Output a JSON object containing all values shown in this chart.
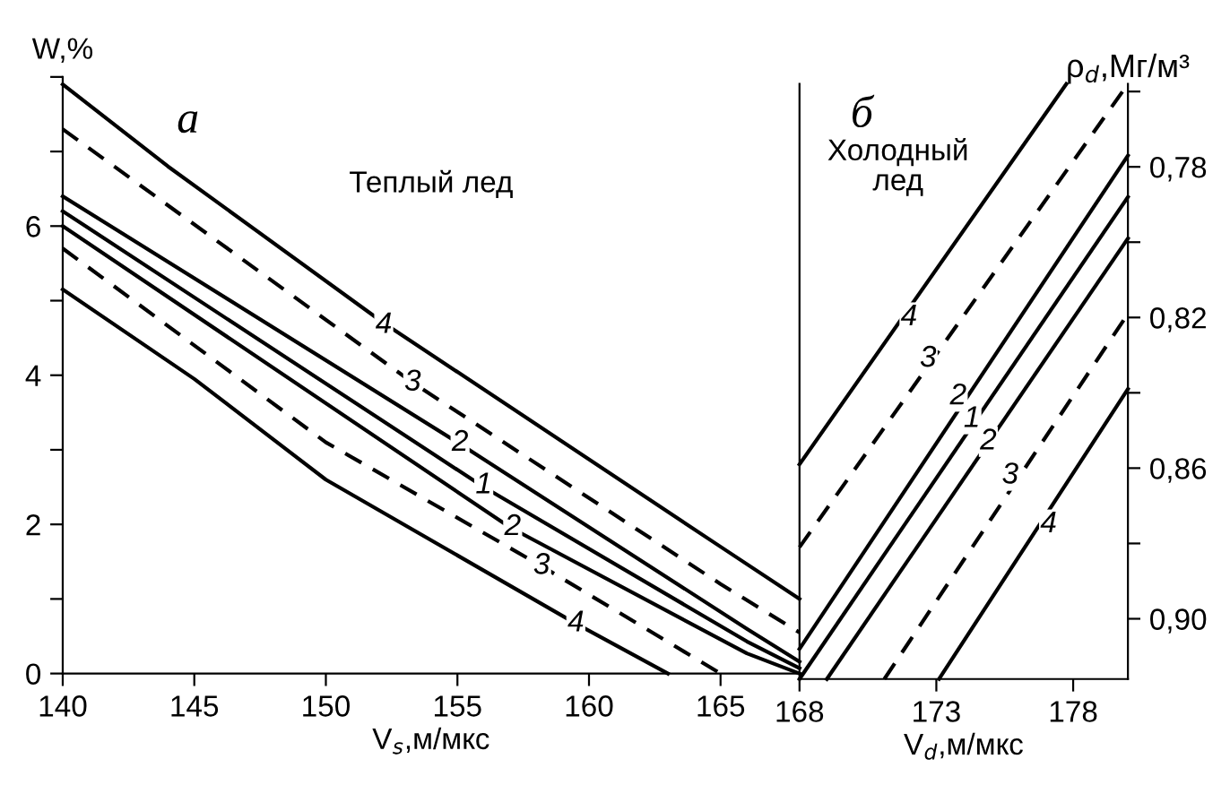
{
  "chart_data": [
    {
      "type": "line",
      "xlabel": "V$_{s}$,м/мкс",
      "ylabel": "W,%",
      "xlim": [
        140,
        168
      ],
      "ylim": [
        0,
        8
      ],
      "xticks": [
        140,
        145,
        150,
        155,
        160,
        165
      ],
      "yticks": [
        0,
        {
          "value": 1,
          "label": null
        },
        2,
        {
          "value": 3,
          "label": null
        },
        4,
        {
          "value": 5,
          "label": null
        },
        6,
        {
          "value": 7,
          "label": null
        },
        {
          "value": 8,
          "label": null
        }
      ],
      "series": [
        {
          "color": "#000000",
          "line_style": "solid",
          "x": [
            140,
            144,
            152.2,
            165,
            168
          ],
          "values": [
            7.9,
            6.8,
            4.7,
            1.7,
            1.0
          ]
        },
        {
          "color": "#000000",
          "line_style": "dashed",
          "x": [
            140,
            153.3,
            165,
            168
          ],
          "values": [
            7.3,
            3.9,
            1.2,
            0.55
          ]
        },
        {
          "color": "#000000",
          "line_style": "solid",
          "x": [
            140,
            155,
            166,
            168
          ],
          "values": [
            6.4,
            3.1,
            0.6,
            0.16
          ]
        },
        {
          "color": "#000000",
          "line_style": "solid",
          "x": [
            140,
            156,
            166,
            168
          ],
          "values": [
            6.2,
            2.5,
            0.43,
            0.07
          ]
        },
        {
          "color": "#000000",
          "line_style": "solid",
          "x": [
            140,
            157,
            166,
            168
          ],
          "values": [
            6.0,
            1.96,
            0.27,
            0
          ]
        },
        {
          "color": "#000000",
          "line_style": "dashed",
          "x": [
            140,
            150,
            158.2,
            165
          ],
          "values": [
            5.7,
            3.1,
            1.44,
            0
          ]
        },
        {
          "color": "#000000",
          "line_style": "solid",
          "x": [
            140,
            145,
            150,
            159.5,
            163
          ],
          "values": [
            5.15,
            3.95,
            2.6,
            0.67,
            0
          ]
        }
      ],
      "annotations": [
        "а",
        "Теплый лед",
        {
          "text": "4",
          "x": 152.2,
          "y": 4.67
        },
        {
          "text": "3",
          "x": 153.3,
          "y": 3.9
        },
        {
          "text": "2",
          "x": 155.1,
          "y": 3.09
        },
        {
          "text": "1",
          "x": 156.0,
          "y": 2.52
        },
        {
          "text": "2",
          "x": 157.1,
          "y": 1.96
        },
        {
          "text": "3",
          "x": 158.2,
          "y": 1.44
        },
        {
          "text": "4",
          "x": 159.5,
          "y": 0.67
        }
      ]
    },
    {
      "type": "line",
      "xlabel": "V$_{d}$,м/мкс",
      "ylabel": "ρ$_{d}$,Мг/м³",
      "xlim": [
        168,
        180
      ],
      "ylim": [
        0.916,
        0.758
      ],
      "xticks": [
        168,
        173,
        178
      ],
      "yticks": [
        {
          "value": 0.76,
          "label": null
        },
        {
          "value": 0.78,
          "label": "0,78"
        },
        {
          "value": 0.8,
          "label": null
        },
        {
          "value": 0.82,
          "label": "0,82"
        },
        {
          "value": 0.84,
          "label": null
        },
        {
          "value": 0.86,
          "label": "0,86"
        },
        {
          "value": 0.88,
          "label": null
        },
        {
          "value": 0.9,
          "label": "0,90"
        }
      ],
      "series": [
        {
          "color": "#000000",
          "line_style": "solid",
          "x": [
            168,
            177.75
          ],
          "values": [
            0.859,
            0.758
          ]
        },
        {
          "color": "#000000",
          "line_style": "dashed",
          "x": [
            168,
            180
          ],
          "values": [
            0.881,
            0.758
          ]
        },
        {
          "color": "#000000",
          "line_style": "solid",
          "x": [
            168,
            180
          ],
          "values": [
            0.908,
            0.777
          ]
        },
        {
          "color": "#000000",
          "line_style": "solid",
          "x": [
            168,
            180
          ],
          "values": [
            0.916,
            0.788
          ]
        },
        {
          "color": "#000000",
          "line_style": "solid",
          "x": [
            169,
            180
          ],
          "values": [
            0.916,
            0.799
          ]
        },
        {
          "color": "#000000",
          "line_style": "dashed",
          "x": [
            171.1,
            180
          ],
          "values": [
            0.916,
            0.819
          ]
        },
        {
          "color": "#000000",
          "line_style": "solid",
          "x": [
            173.1,
            180
          ],
          "values": [
            0.916,
            0.839
          ]
        }
      ],
      "annotations": [
        "б",
        "Холодный\nлед",
        {
          "text": "4",
          "x": 172.0,
          "y": 0.82
        },
        {
          "text": "3",
          "x": 172.7,
          "y": 0.831
        },
        {
          "text": "2",
          "x": 173.8,
          "y": 0.841
        },
        {
          "text": "1",
          "x": 174.3,
          "y": 0.847
        },
        {
          "text": "2",
          "x": 174.9,
          "y": 0.853
        },
        {
          "text": "3",
          "x": 175.7,
          "y": 0.862
        },
        {
          "text": "4",
          "x": 177.1,
          "y": 0.875
        }
      ]
    }
  ]
}
